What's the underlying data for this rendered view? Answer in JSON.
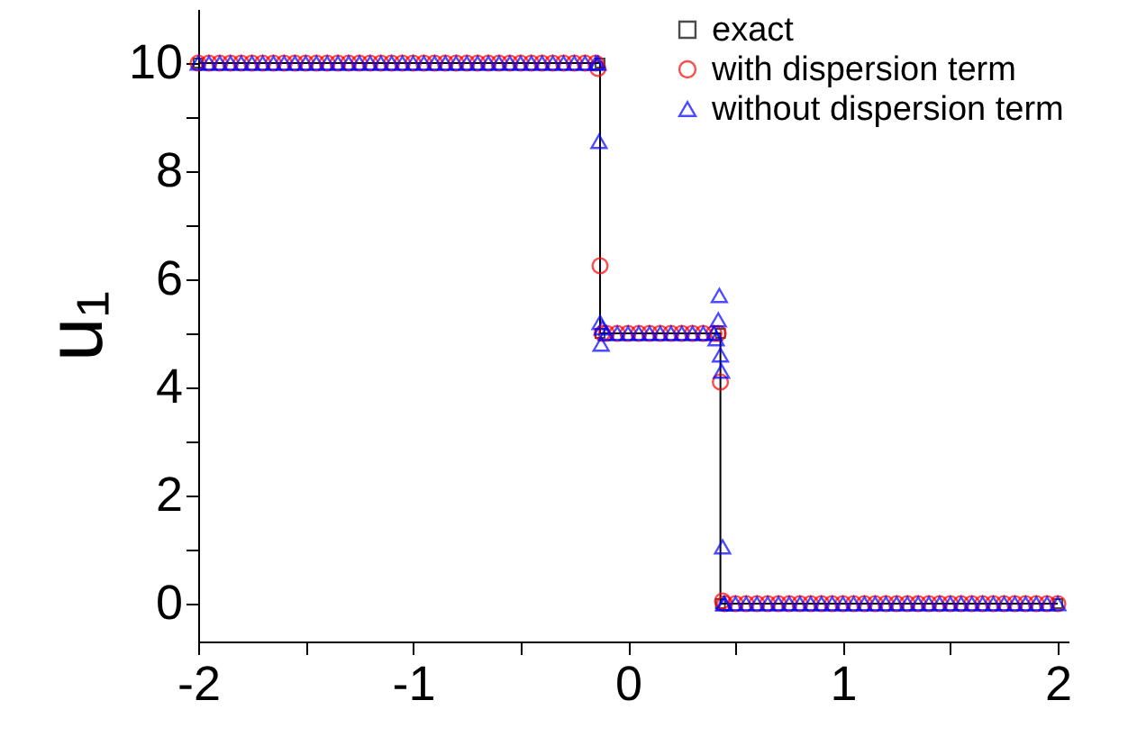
{
  "chart_data": {
    "type": "scatter",
    "xlim": [
      -2,
      2.05
    ],
    "ylim": [
      -0.7,
      11
    ],
    "xticks": [
      -2,
      {
        "value": -1.5,
        "label": null
      },
      -1,
      {
        "value": -0.5,
        "label": null
      },
      0,
      {
        "value": 0.5,
        "label": null
      },
      1,
      {
        "value": 1.5,
        "label": null
      },
      2
    ],
    "yticks": [
      0,
      {
        "value": 1,
        "label": null
      },
      2,
      {
        "value": 3,
        "label": null
      },
      4,
      {
        "value": 5,
        "label": null
      },
      6,
      {
        "value": 7,
        "label": null
      },
      8,
      {
        "value": 9,
        "label": null
      },
      10
    ],
    "ylabel": "u₁",
    "grid": false,
    "legend": "top right",
    "series": [
      {
        "name": "exact",
        "type": "line",
        "color": "#000000",
        "marker": "square",
        "line_style": "solid",
        "x": [
          -2,
          -0.13,
          -0.13,
          0.43,
          0.43,
          2
        ],
        "values": [
          10,
          10,
          5,
          5,
          0,
          0
        ]
      },
      {
        "name": "with dispersion term",
        "color": "#ff0000",
        "marker": "circle",
        "x": [
          -2,
          -1.95,
          -1.9,
          -1.85,
          -1.8,
          -1.75,
          -1.7,
          -1.65,
          -1.6,
          -1.55,
          -1.5,
          -1.45,
          -1.4,
          -1.35,
          -1.3,
          -1.25,
          -1.2,
          -1.15,
          -1.1,
          -1.05,
          -1,
          -0.95,
          -0.9,
          -0.85,
          -0.8,
          -0.75,
          -0.7,
          -0.65,
          -0.6,
          -0.55,
          -0.5,
          -0.45,
          -0.4,
          -0.35,
          -0.3,
          -0.25,
          -0.2,
          -0.15,
          -0.14,
          -0.13,
          -0.12,
          -0.1,
          -0.05,
          0,
          0.05,
          0.1,
          0.15,
          0.2,
          0.25,
          0.3,
          0.35,
          0.4,
          0.42,
          0.43,
          0.44,
          0.45,
          0.5,
          0.55,
          0.6,
          0.65,
          0.7,
          0.75,
          0.8,
          0.85,
          0.9,
          0.95,
          1,
          1.05,
          1.1,
          1.15,
          1.2,
          1.25,
          1.3,
          1.35,
          1.4,
          1.45,
          1.5,
          1.55,
          1.6,
          1.65,
          1.7,
          1.75,
          1.8,
          1.85,
          1.9,
          1.95,
          2
        ],
        "values": [
          10,
          10,
          10,
          10,
          10,
          10,
          10,
          10,
          10,
          10,
          10,
          10,
          10,
          10,
          10,
          10,
          10,
          10,
          10,
          10,
          10,
          10,
          10,
          10,
          10,
          10,
          10,
          10,
          10,
          10,
          10,
          10,
          10,
          10,
          10,
          10,
          10,
          10,
          9.9,
          6.25,
          5,
          5,
          5,
          5,
          5,
          5,
          5,
          5,
          5,
          5,
          5,
          5,
          5,
          4.1,
          0.05,
          0,
          0,
          0,
          0,
          0,
          0,
          0,
          0,
          0,
          0,
          0,
          0,
          0,
          0,
          0,
          0,
          0,
          0,
          0,
          0,
          0,
          0,
          0,
          0,
          0,
          0,
          0,
          0,
          0,
          0,
          0,
          0
        ]
      },
      {
        "name": "without dispersion term",
        "color": "#0000ff",
        "marker": "triangle",
        "x": [
          -2,
          -1.95,
          -1.9,
          -1.85,
          -1.8,
          -1.75,
          -1.7,
          -1.65,
          -1.6,
          -1.55,
          -1.5,
          -1.45,
          -1.4,
          -1.35,
          -1.3,
          -1.25,
          -1.2,
          -1.15,
          -1.1,
          -1.05,
          -1,
          -0.95,
          -0.9,
          -0.85,
          -0.8,
          -0.75,
          -0.7,
          -0.65,
          -0.6,
          -0.55,
          -0.5,
          -0.45,
          -0.4,
          -0.35,
          -0.3,
          -0.25,
          -0.2,
          -0.15,
          -0.14,
          -0.135,
          -0.13,
          -0.125,
          -0.12,
          -0.1,
          -0.05,
          0,
          0.05,
          0.1,
          0.15,
          0.2,
          0.25,
          0.3,
          0.35,
          0.4,
          0.41,
          0.42,
          0.425,
          0.43,
          0.435,
          0.44,
          0.445,
          0.45,
          0.5,
          0.55,
          0.6,
          0.65,
          0.7,
          0.75,
          0.8,
          0.85,
          0.9,
          0.95,
          1,
          1.05,
          1.1,
          1.15,
          1.2,
          1.25,
          1.3,
          1.35,
          1.4,
          1.45,
          1.5,
          1.55,
          1.6,
          1.65,
          1.7,
          1.75,
          1.8,
          1.85,
          1.9,
          1.95,
          2
        ],
        "values": [
          10,
          10,
          10,
          10,
          10,
          10,
          10,
          10,
          10,
          10,
          10,
          10,
          10,
          10,
          10,
          10,
          10,
          10,
          10,
          10,
          10,
          10,
          10,
          10,
          10,
          10,
          10,
          10,
          10,
          10,
          10,
          10,
          10,
          10,
          10,
          10,
          10,
          10,
          10,
          8.55,
          5.2,
          4.8,
          5.1,
          5,
          5,
          5,
          5,
          5,
          5,
          5,
          5,
          5,
          5,
          5,
          4.9,
          5.25,
          5.7,
          4.6,
          4.3,
          1.05,
          0,
          0,
          0,
          0,
          0,
          0,
          0,
          0,
          0,
          0,
          0,
          0,
          0,
          0,
          0,
          0,
          0,
          0,
          0,
          0,
          0,
          0,
          0,
          0,
          0,
          0,
          0,
          0,
          0,
          0,
          0,
          0,
          0
        ]
      }
    ]
  }
}
